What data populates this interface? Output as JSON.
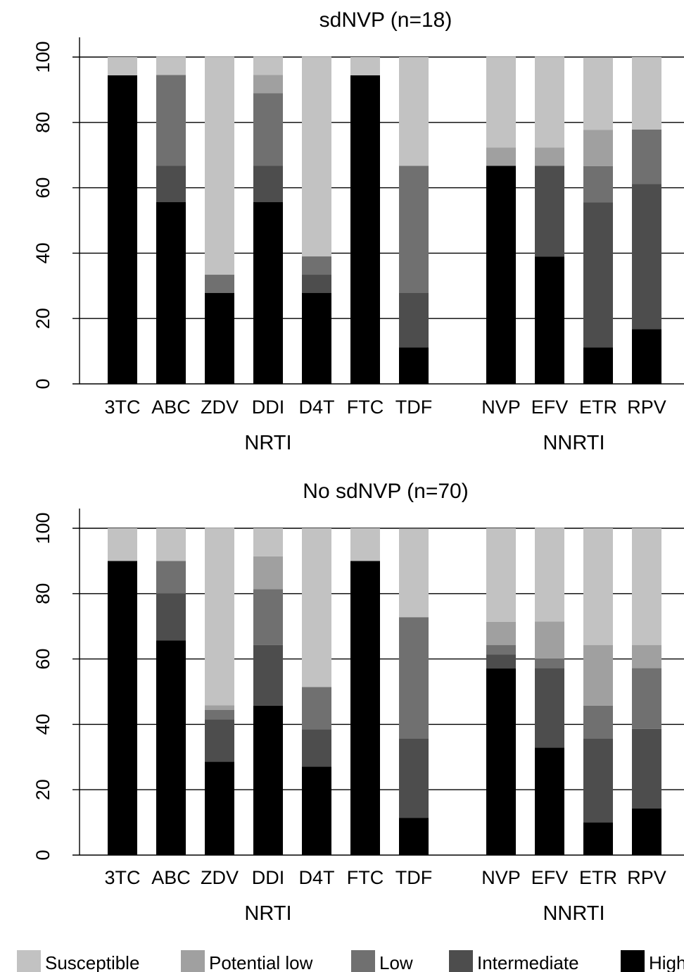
{
  "chart_data": [
    {
      "type": "bar",
      "stacked": true,
      "title": "sdNVP (n=18)",
      "ylim": [
        0,
        100
      ],
      "yticks": [
        "0",
        "20",
        "40",
        "60",
        "80",
        "100"
      ],
      "grid": "horizontal",
      "groups": [
        {
          "label": "NRTI",
          "categories": [
            "3TC",
            "ABC",
            "ZDV",
            "DDI",
            "D4T",
            "FTC",
            "TDF"
          ]
        },
        {
          "label": "NNRTI",
          "categories": [
            "NVP",
            "EFV",
            "ETR",
            "RPV"
          ]
        }
      ],
      "categories": [
        "3TC",
        "ABC",
        "ZDV",
        "DDI",
        "D4T",
        "FTC",
        "TDF",
        "NVP",
        "EFV",
        "ETR",
        "RPV"
      ],
      "series": [
        {
          "name": "High",
          "values": [
            94.4,
            55.6,
            27.8,
            55.6,
            27.8,
            94.4,
            11.1,
            66.7,
            38.9,
            11.1,
            16.7
          ]
        },
        {
          "name": "Intermediate",
          "values": [
            0,
            11.1,
            0,
            11.1,
            5.6,
            0,
            16.7,
            0,
            27.8,
            44.4,
            44.4
          ]
        },
        {
          "name": "Low",
          "values": [
            0,
            27.8,
            5.6,
            22.2,
            5.6,
            0,
            38.9,
            0,
            0,
            11.1,
            16.7
          ]
        },
        {
          "name": "Potential low",
          "values": [
            0,
            0,
            0,
            5.6,
            0,
            0,
            0,
            5.6,
            5.6,
            11.1,
            0
          ]
        },
        {
          "name": "Susceptible",
          "values": [
            5.6,
            5.6,
            66.7,
            5.6,
            61.1,
            5.6,
            33.3,
            27.8,
            27.8,
            22.2,
            22.2
          ]
        }
      ]
    },
    {
      "type": "bar",
      "stacked": true,
      "title": "No sdNVP (n=70)",
      "ylim": [
        0,
        100
      ],
      "yticks": [
        "0",
        "20",
        "40",
        "60",
        "80",
        "100"
      ],
      "grid": "horizontal",
      "groups": [
        {
          "label": "NRTI",
          "categories": [
            "3TC",
            "ABC",
            "ZDV",
            "DDI",
            "D4T",
            "FTC",
            "TDF"
          ]
        },
        {
          "label": "NNRTI",
          "categories": [
            "NVP",
            "EFV",
            "ETR",
            "RPV"
          ]
        }
      ],
      "categories": [
        "3TC",
        "ABC",
        "ZDV",
        "DDI",
        "D4T",
        "FTC",
        "TDF",
        "NVP",
        "EFV",
        "ETR",
        "RPV"
      ],
      "series": [
        {
          "name": "High",
          "values": [
            90,
            65.7,
            28.6,
            45.7,
            27.1,
            90,
            11.4,
            57.1,
            32.9,
            10,
            14.3
          ]
        },
        {
          "name": "Intermediate",
          "values": [
            0,
            14.3,
            12.9,
            18.6,
            11.4,
            0,
            24.3,
            4.3,
            24.3,
            25.7,
            24.3
          ]
        },
        {
          "name": "Low",
          "values": [
            0,
            10,
            2.9,
            17.1,
            12.9,
            0,
            37.1,
            2.9,
            2.9,
            10,
            18.6
          ]
        },
        {
          "name": "Potential low",
          "values": [
            0,
            0,
            1.4,
            10,
            0,
            0,
            0,
            7.1,
            11.4,
            18.6,
            7.1
          ]
        },
        {
          "name": "Susceptible",
          "values": [
            10,
            10,
            54.3,
            8.6,
            48.6,
            10,
            27.1,
            28.6,
            28.6,
            35.7,
            35.7
          ]
        }
      ]
    }
  ],
  "legend": {
    "placement": "bottom",
    "items": [
      {
        "name": "Susceptible",
        "color": "#c2c2c2"
      },
      {
        "name": "Potential low",
        "color": "#a0a0a0"
      },
      {
        "name": "Low",
        "color": "#707070"
      },
      {
        "name": "Intermediate",
        "color": "#4d4d4d"
      },
      {
        "name": "High",
        "color": "#000000"
      }
    ]
  }
}
